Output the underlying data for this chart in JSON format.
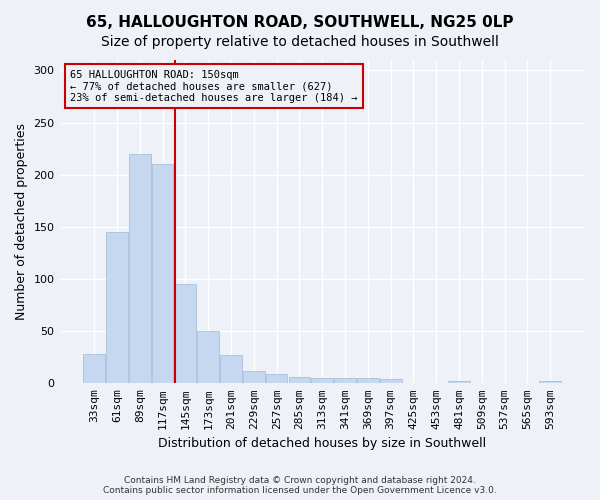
{
  "title1": "65, HALLOUGHTON ROAD, SOUTHWELL, NG25 0LP",
  "title2": "Size of property relative to detached houses in Southwell",
  "xlabel": "Distribution of detached houses by size in Southwell",
  "ylabel": "Number of detached properties",
  "annotation_line1": "65 HALLOUGHTON ROAD: 150sqm",
  "annotation_line2": "← 77% of detached houses are smaller (627)",
  "annotation_line3": "23% of semi-detached houses are larger (184) →",
  "footnote1": "Contains HM Land Registry data © Crown copyright and database right 2024.",
  "footnote2": "Contains public sector information licensed under the Open Government Licence v3.0.",
  "bin_labels": [
    "33sqm",
    "61sqm",
    "89sqm",
    "117sqm",
    "145sqm",
    "173sqm",
    "201sqm",
    "229sqm",
    "257sqm",
    "285sqm",
    "313sqm",
    "341sqm",
    "369sqm",
    "397sqm",
    "425sqm",
    "453sqm",
    "481sqm",
    "509sqm",
    "537sqm",
    "565sqm",
    "593sqm"
  ],
  "bar_values": [
    28,
    145,
    220,
    210,
    95,
    50,
    27,
    12,
    9,
    6,
    5,
    5,
    5,
    4,
    0,
    0,
    2,
    0,
    0,
    0,
    2
  ],
  "bar_color": "#c5d8f0",
  "bar_edge_color": "#a0b8d8",
  "highlight_bin_index": 4,
  "vline_color": "#cc0000",
  "ylim": [
    0,
    310
  ],
  "yticks": [
    0,
    50,
    100,
    150,
    200,
    250,
    300
  ],
  "background_color": "#eef2f8",
  "grid_color": "#ffffff",
  "title1_fontsize": 11,
  "title2_fontsize": 10,
  "axis_label_fontsize": 9,
  "tick_fontsize": 8
}
